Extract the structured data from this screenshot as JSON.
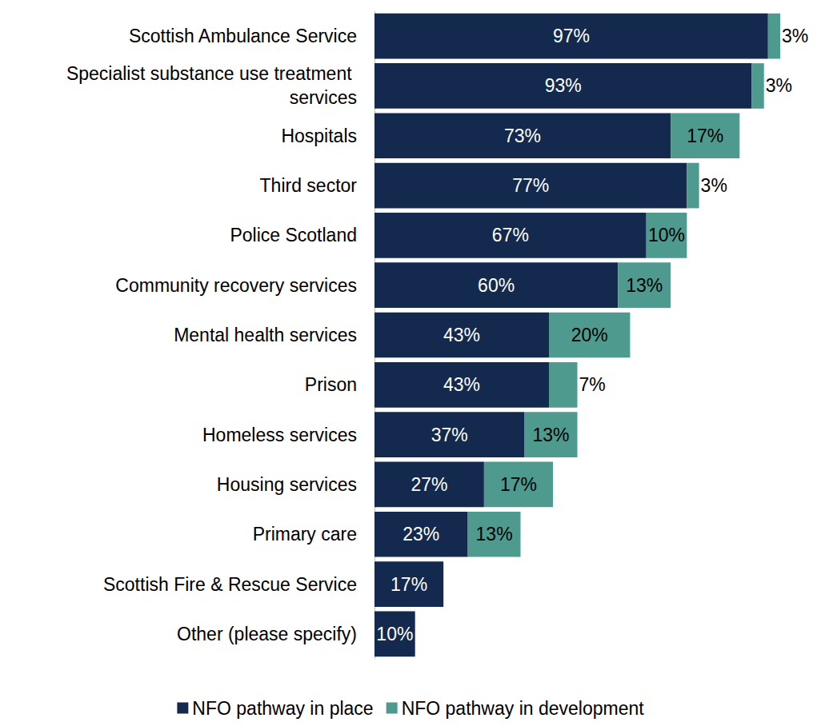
{
  "chart_data": {
    "type": "bar",
    "orientation": "horizontal",
    "stacked": true,
    "data_labels": true,
    "tick_labels": "y",
    "grid": false,
    "legend": "bottom",
    "categories": [
      "Scottish Ambulance Service",
      "Specialist substance use treatment services",
      "Hospitals",
      "Third sector",
      "Police Scotland",
      "Community recovery services",
      "Mental health services",
      "Prison",
      "Homeless services",
      "Housing services",
      "Primary care",
      "Scottish Fire & Rescue Service",
      "Other (please specify)"
    ],
    "xlim": [
      0,
      100
    ],
    "series": [
      {
        "name": "NFO pathway in place",
        "color": "#132a4e",
        "values": [
          97,
          93,
          73,
          77,
          67,
          60,
          43,
          43,
          37,
          27,
          23,
          17,
          10
        ],
        "value_labels": [
          "97%",
          "93%",
          "73%",
          "77%",
          "67%",
          "60%",
          "43%",
          "43%",
          "37%",
          "27%",
          "23%",
          "17%",
          "10%"
        ]
      },
      {
        "name": "NFO pathway in development",
        "color": "#4f9a8f",
        "values": [
          3,
          3,
          17,
          3,
          10,
          13,
          20,
          7,
          13,
          17,
          13,
          null,
          null
        ],
        "value_labels": [
          "3%",
          "3%",
          "17%",
          "3%",
          "10%",
          "13%",
          "20%",
          "7%",
          "13%",
          "17%",
          "13%",
          null,
          null
        ]
      }
    ]
  }
}
